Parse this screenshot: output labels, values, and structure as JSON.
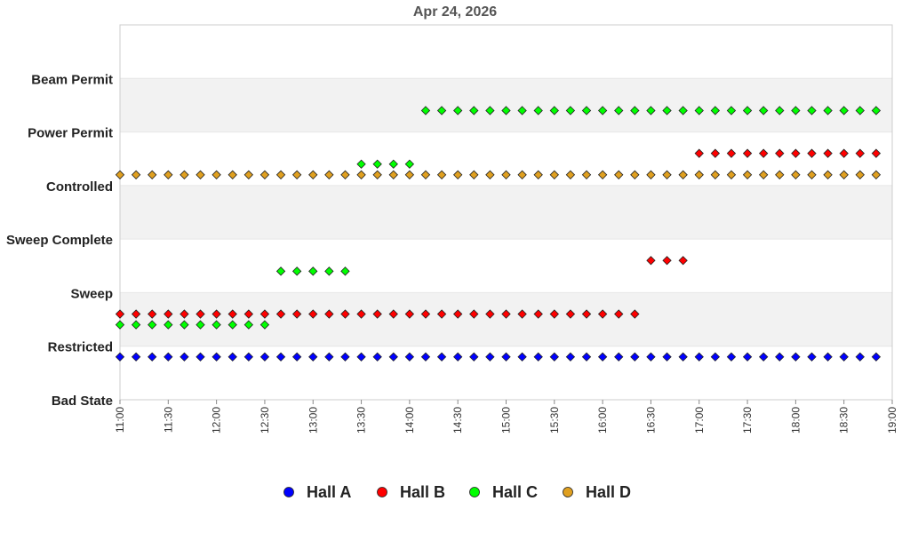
{
  "chart_data": {
    "type": "scatter",
    "title": "Apr 24, 2026",
    "y_categories": [
      "Bad State",
      "Restricted",
      "Sweep",
      "Sweep Complete",
      "Controlled",
      "Power Permit",
      "Beam Permit"
    ],
    "x_ticks": [
      "11:00",
      "11:30",
      "12:00",
      "12:30",
      "13:00",
      "13:30",
      "14:00",
      "14:30",
      "15:00",
      "15:30",
      "16:00",
      "16:30",
      "17:00",
      "17:30",
      "18:00",
      "18:30",
      "19:00"
    ],
    "xlim": [
      "11:00",
      "19:00"
    ],
    "sample_interval_minutes": 10,
    "legend_position": "bottom",
    "series": [
      {
        "name": "Hall A",
        "color": "#0000ff",
        "segments": [
          {
            "start": "11:00",
            "end": "18:50",
            "level": 0.8
          }
        ]
      },
      {
        "name": "Hall B",
        "color": "#ff0000",
        "segments": [
          {
            "start": "11:00",
            "end": "16:20",
            "level": 1.6
          },
          {
            "start": "16:30",
            "end": "16:50",
            "level": 2.6
          },
          {
            "start": "17:00",
            "end": "18:50",
            "level": 4.6
          }
        ]
      },
      {
        "name": "Hall C",
        "color": "#00ff00",
        "segments": [
          {
            "start": "11:00",
            "end": "12:30",
            "level": 1.4
          },
          {
            "start": "12:40",
            "end": "13:20",
            "level": 2.4
          },
          {
            "start": "13:30",
            "end": "14:00",
            "level": 4.4
          },
          {
            "start": "14:10",
            "end": "18:50",
            "level": 5.4
          }
        ]
      },
      {
        "name": "Hall D",
        "color": "#e0a020",
        "segments": [
          {
            "start": "11:00",
            "end": "18:50",
            "level": 4.2
          }
        ]
      }
    ]
  }
}
